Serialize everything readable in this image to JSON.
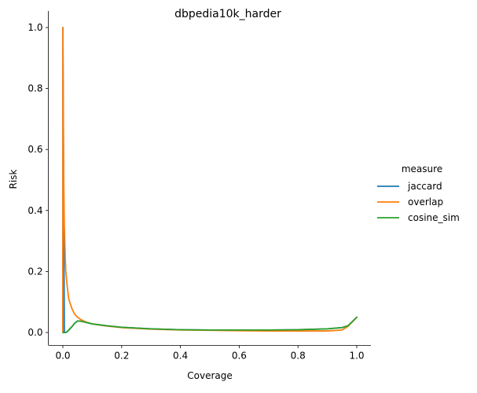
{
  "chart_data": {
    "type": "line",
    "title": "dbpedia10k_harder",
    "xlabel": "Coverage",
    "ylabel": "Risk",
    "xlim": [
      -0.04,
      1.05
    ],
    "ylim": [
      -0.04,
      1.05
    ],
    "x_ticks": [
      0.0,
      0.2,
      0.4,
      0.6,
      0.8,
      1.0
    ],
    "x_tick_labels": [
      "0.0",
      "0.2",
      "0.4",
      "0.6",
      "0.8",
      "1.0"
    ],
    "y_ticks": [
      0.0,
      0.2,
      0.4,
      0.6,
      0.8,
      1.0
    ],
    "y_tick_labels": [
      "0.0",
      "0.2",
      "0.4",
      "0.6",
      "0.8",
      "1.0"
    ],
    "grid": false,
    "legend": {
      "title": "measure",
      "placement": "right"
    },
    "series": [
      {
        "name": "jaccard",
        "color": "#1f77b4",
        "x": [
          0.0,
          0.0,
          0.005,
          0.01,
          0.015,
          0.02,
          0.03,
          0.04,
          0.05,
          0.06,
          0.07,
          0.08,
          0.1,
          0.15,
          0.2,
          0.3,
          0.4,
          0.5,
          0.6,
          0.7,
          0.8,
          0.9,
          0.95,
          0.97,
          1.0
        ],
        "y": [
          0.0,
          1.0,
          0.0,
          0.0,
          0.003,
          0.008,
          0.018,
          0.03,
          0.038,
          0.037,
          0.035,
          0.033,
          0.028,
          0.022,
          0.017,
          0.012,
          0.009,
          0.008,
          0.008,
          0.008,
          0.009,
          0.012,
          0.016,
          0.022,
          0.05
        ]
      },
      {
        "name": "overlap",
        "color": "#ff7f0e",
        "x": [
          0.0,
          0.0,
          0.003,
          0.005,
          0.008,
          0.01,
          0.015,
          0.02,
          0.03,
          0.04,
          0.05,
          0.06,
          0.07,
          0.08,
          0.1,
          0.15,
          0.2,
          0.3,
          0.4,
          0.5,
          0.6,
          0.7,
          0.8,
          0.9,
          0.95,
          0.97,
          1.0
        ],
        "y": [
          0.0,
          1.0,
          0.5,
          0.35,
          0.25,
          0.2,
          0.15,
          0.11,
          0.08,
          0.06,
          0.05,
          0.043,
          0.038,
          0.034,
          0.028,
          0.021,
          0.016,
          0.011,
          0.008,
          0.007,
          0.006,
          0.005,
          0.005,
          0.005,
          0.008,
          0.02,
          0.05
        ]
      },
      {
        "name": "cosine_sim",
        "color": "#2ca02c",
        "x": [
          0.0,
          0.005,
          0.01,
          0.015,
          0.02,
          0.03,
          0.04,
          0.05,
          0.06,
          0.07,
          0.08,
          0.1,
          0.15,
          0.2,
          0.3,
          0.4,
          0.5,
          0.6,
          0.7,
          0.8,
          0.9,
          0.95,
          0.97,
          1.0
        ],
        "y": [
          0.0,
          0.0,
          0.0,
          0.003,
          0.008,
          0.018,
          0.03,
          0.038,
          0.037,
          0.035,
          0.033,
          0.028,
          0.022,
          0.017,
          0.012,
          0.009,
          0.008,
          0.008,
          0.008,
          0.009,
          0.012,
          0.016,
          0.022,
          0.05
        ]
      }
    ]
  }
}
